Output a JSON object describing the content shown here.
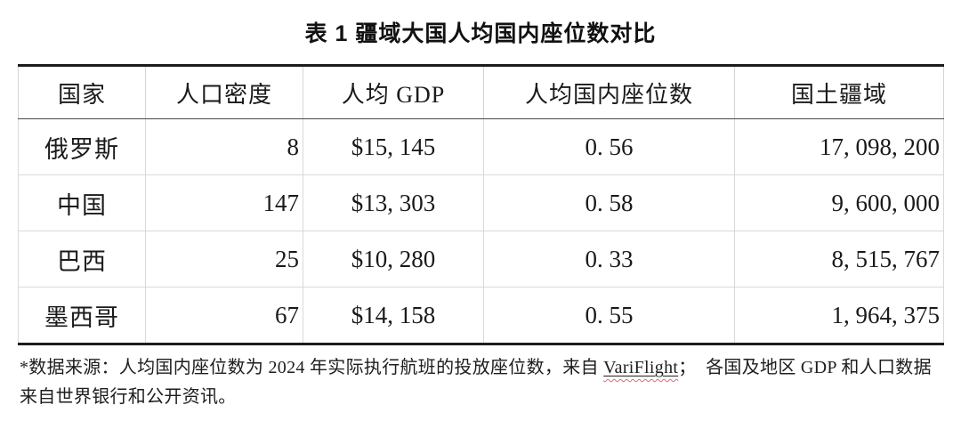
{
  "page": {
    "title": "表 1 疆域大国人均国内座位数对比"
  },
  "table": {
    "headers": {
      "country": "国家",
      "density": "人口密度",
      "gdp": "人均 GDP",
      "seats": "人均国内座位数",
      "territory": "国土疆域"
    },
    "rows": [
      {
        "country": "俄罗斯",
        "density": "8",
        "gdp": "$15, 145",
        "seats": "0. 56",
        "territory": "17, 098, 200"
      },
      {
        "country": "中国",
        "density": "147",
        "gdp": "$13, 303",
        "seats": "0. 58",
        "territory": "9, 600, 000"
      },
      {
        "country": "巴西",
        "density": "25",
        "gdp": "$10, 280",
        "seats": "0. 33",
        "territory": "8, 515, 767"
      },
      {
        "country": "墨西哥",
        "density": "67",
        "gdp": "$14, 158",
        "seats": "0. 55",
        "territory": "1, 964, 375"
      }
    ]
  },
  "footnote": {
    "part1": "*数据来源：人均国内座位数为 2024 年实际执行航班的投放座位数，来自 ",
    "link": "VariFlight",
    "part2": "；  各国及地区 GDP 和人口数据来自世界银行和公开资讯。"
  },
  "colors": {
    "border_heavy": "#1c1c1c",
    "border_light": "#d9d9d9",
    "header_underline": "#4a4a4a",
    "text": "#1a1a1a",
    "spellcheck_wave": "#e06a6a"
  }
}
